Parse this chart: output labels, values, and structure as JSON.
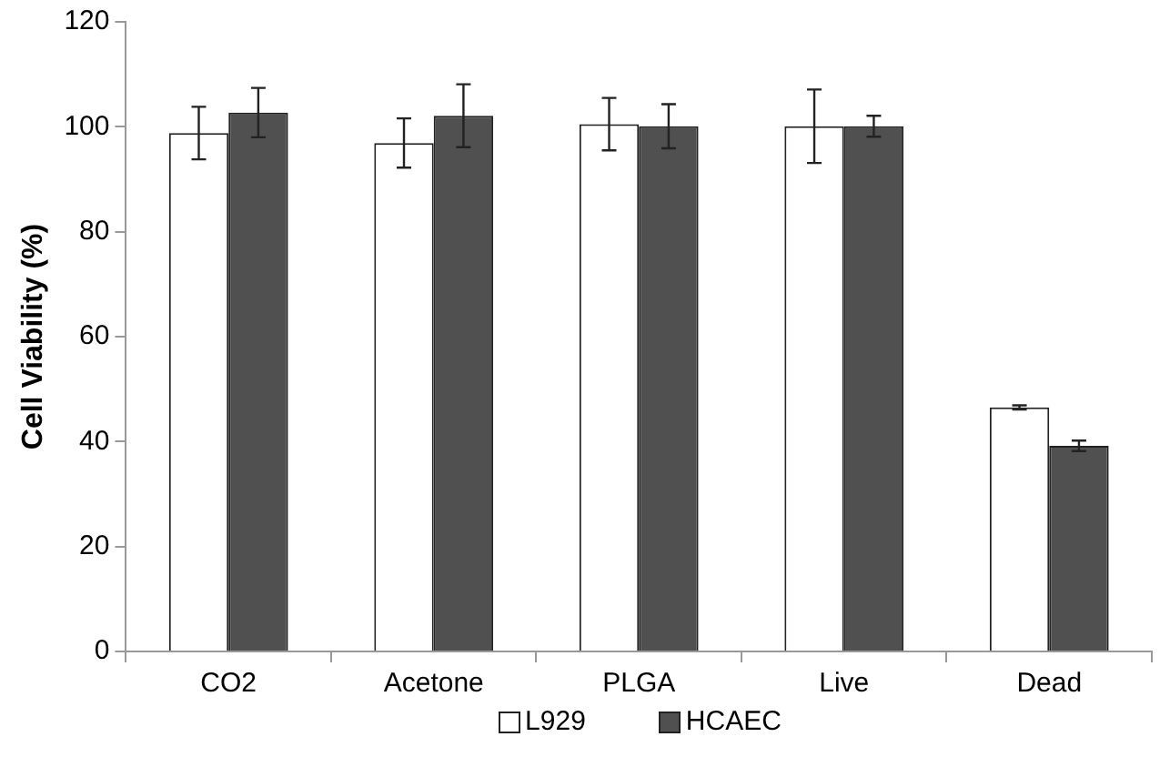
{
  "chart_data": {
    "type": "bar",
    "ylabel": "Cell Viability (%)",
    "categories": [
      "CO2",
      "Acetone",
      "PLGA",
      "Live",
      "Dead"
    ],
    "series": [
      {
        "name": "L929",
        "color": "#ffffff",
        "values": [
          98.8,
          96.9,
          100.5,
          100.1,
          46.5
        ],
        "errors": [
          5,
          4.7,
          5,
          7,
          0.4
        ]
      },
      {
        "name": "HCAEC",
        "color": "#505050",
        "values": [
          102.7,
          102.1,
          100.1,
          100.1,
          39.2
        ],
        "errors": [
          4.7,
          6,
          4.2,
          2,
          1
        ]
      }
    ],
    "ylim": [
      0,
      120
    ],
    "yticks": [
      0,
      20,
      40,
      60,
      80,
      100,
      120
    ],
    "grid": false,
    "legend": "bottom"
  }
}
